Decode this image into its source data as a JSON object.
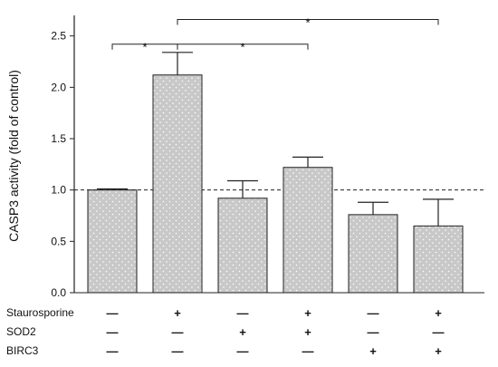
{
  "chart_data": {
    "type": "bar",
    "ylabel": "CASP3 activity  (fold of control)",
    "ylim": [
      0,
      2.7
    ],
    "yticks": [
      "0.0",
      "0.5",
      "1.0",
      "1.5",
      "2.0",
      "2.5"
    ],
    "reference_line": 1.0,
    "bar_color": "#c8c8c8",
    "values": [
      1.0,
      2.12,
      0.92,
      1.22,
      0.76,
      0.65
    ],
    "errors": [
      0.01,
      0.22,
      0.17,
      0.1,
      0.12,
      0.26
    ],
    "conditions": [
      {
        "label": "Staurosporine",
        "signs": [
          "—",
          "+",
          "—",
          "+",
          "—",
          "+"
        ]
      },
      {
        "label": "SOD2",
        "signs": [
          "—",
          "—",
          "+",
          "+",
          "—",
          "—"
        ]
      },
      {
        "label": "BIRC3",
        "signs": [
          "—",
          "—",
          "—",
          "—",
          "+",
          "+"
        ]
      }
    ],
    "significance": [
      {
        "from": 0,
        "to": 1,
        "y": 2.42,
        "label": "*"
      },
      {
        "from": 1,
        "to": 3,
        "y": 2.42,
        "label": "*"
      },
      {
        "from": 1,
        "to": 5,
        "y": 2.66,
        "label": "*"
      }
    ]
  }
}
